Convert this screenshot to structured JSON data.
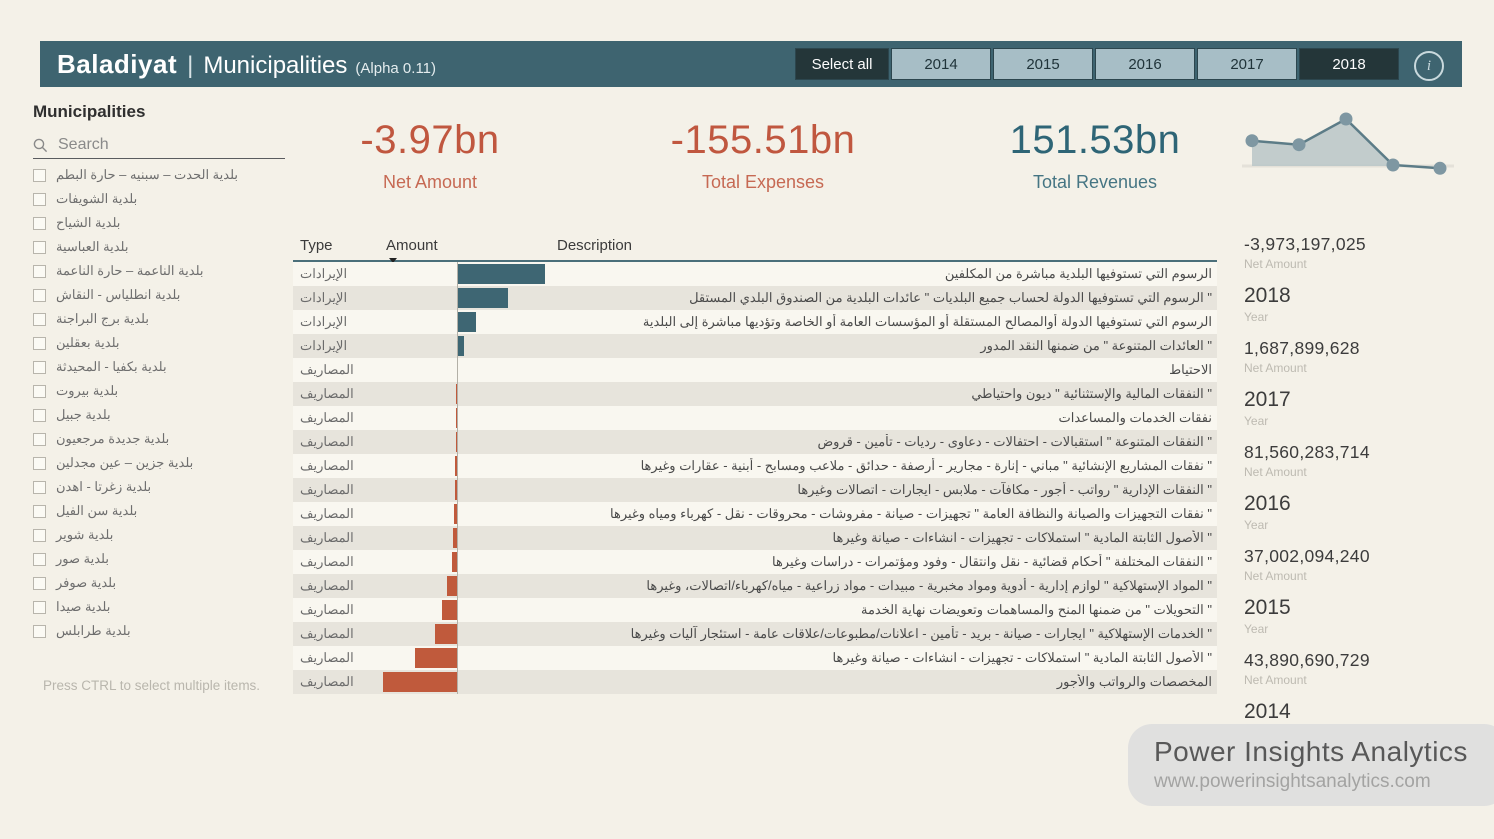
{
  "header": {
    "app_title": "Baladiyat",
    "separator": "|",
    "subtitle": "Municipalities",
    "version": "(Alpha 0.11)",
    "select_all_label": "Select all",
    "years": [
      {
        "label": "2014",
        "selected": false
      },
      {
        "label": "2015",
        "selected": false
      },
      {
        "label": "2016",
        "selected": false
      },
      {
        "label": "2017",
        "selected": false
      },
      {
        "label": "2018",
        "selected": true
      }
    ],
    "info_icon_glyph": "i"
  },
  "sidebar": {
    "title": "Municipalities",
    "search_placeholder": "Search",
    "items": [
      "بلدية الحدت – سبنيه – حارة البطم",
      "بلدية الشويفات",
      "بلدية الشياح",
      "بلدية العباسية",
      "بلدية الناعمة – حارة الناعمة",
      "بلدية انطلياس - النقاش",
      "بلدية برج البراجنة",
      "بلدية بعقلين",
      "بلدية بكفيا - المحيدثة",
      "بلدية بيروت",
      "بلدية جبيل",
      "بلدية جديدة مرجعيون",
      "بلدية جزين – عين مجدلين",
      "بلدية زغرتا - اهدن",
      "بلدية سن الفيل",
      "بلدية شوير",
      "بلدية صور",
      "بلدية صوفر",
      "بلدية صيدا",
      "بلدية طرابلس"
    ],
    "footer_note": "Press CTRL to select multiple items."
  },
  "kpis": [
    {
      "value": "-3.97bn",
      "label": "Net Amount",
      "color": "#c0573f"
    },
    {
      "value": "-155.51bn",
      "label": "Total Expenses",
      "color": "#c0573f"
    },
    {
      "value": "151.53bn",
      "label": "Total Revenues",
      "color": "#2e6576"
    }
  ],
  "table": {
    "columns": [
      "Type",
      "Amount",
      "Description"
    ],
    "sort_column": "Amount",
    "sort_direction": "descending",
    "rows": [
      {
        "type": "الإيرادات",
        "bar": 88,
        "description": "الرسوم التي تستوفيها البلدية مباشرة من المكلفين"
      },
      {
        "type": "الإيرادات",
        "bar": 51,
        "description": "\" الرسوم التي تستوفيها الدولة لحساب جميع البلديات \" عائدات البلدية من الصندوق البلدي المستقل"
      },
      {
        "type": "الإيرادات",
        "bar": 19,
        "description": "الرسوم التي تستوفيها الدولة أوالمصالح المستقلة أو المؤسسات العامة أو الخاصة وتؤديها مباشرة إلى البلدية"
      },
      {
        "type": "الإيرادات",
        "bar": 7,
        "description": "\" العائدات المتنوعة \" من ضمنها النقد المدور"
      },
      {
        "type": "المصاريف",
        "bar": -0.5,
        "description": "الاحتياط"
      },
      {
        "type": "المصاريف",
        "bar": -0.8,
        "description": "\" النفقات المالية والإستثنائية \" ديون واحتياطي"
      },
      {
        "type": "المصاريف",
        "bar": -1,
        "description": "نفقات الخدمات والمساعدات"
      },
      {
        "type": "المصاريف",
        "bar": -1.5,
        "description": "\" النفقات المتنوعة \" استقبالات - احتفالات - دعاوى - رديات - تأمين - قروض"
      },
      {
        "type": "المصاريف",
        "bar": -2,
        "description": "\" نفقات المشاريع الإنشائية \" مباني - إنارة - مجارير - أرصفة - حدائق - ملاعب ومسابح - أبنية - عقارات وغيرها"
      },
      {
        "type": "المصاريف",
        "bar": -2.5,
        "description": "\" النفقات الإدارية \" رواتب - أجور - مكافآت - ملابس - ايجارات - اتصالات وغيرها"
      },
      {
        "type": "المصاريف",
        "bar": -3,
        "description": "\" نفقات التجهيزات والصيانة والنظافة العامة \" تجهيزات - صيانة - مفروشات - محروقات - نقل - كهرباء ومياه وغيرها"
      },
      {
        "type": "المصاريف",
        "bar": -4,
        "description": "\" الأصول الثابتة المادية \" استملاكات - تجهيزات - انشاءات - صيانة وغيرها"
      },
      {
        "type": "المصاريف",
        "bar": -5,
        "description": "\" النفقات المختلفة \" أحكام قضائية - نقل وانتقال - وفود ومؤتمرات - دراسات وغيرها"
      },
      {
        "type": "المصاريف",
        "bar": -10,
        "description": "\" المواد الإستهلاكية \" لوازم إدارية - أدوية ومواد مخبرية - مبيدات - مواد زراعية - مياه/كهرباء/اتصالات، وغيرها"
      },
      {
        "type": "المصاريف",
        "bar": -15,
        "description": "\" التحويلات \" من ضمنها المنح والمساهمات وتعويضات نهاية الخدمة"
      },
      {
        "type": "المصاريف",
        "bar": -22,
        "description": "\" الخدمات الإستهلاكية \" ايجارات - صيانة - بريد - تأمين - اعلانات/مطبوعات/علاقات عامة - استئجار آليات وغيرها"
      },
      {
        "type": "المصاريف",
        "bar": -42,
        "description": "\" الأصول الثابتة المادية \" استملاكات - تجهيزات - انشاءات - صيانة وغيرها"
      },
      {
        "type": "المصاريف",
        "bar": -74,
        "description": "المخصصات والرواتب والأجور"
      }
    ]
  },
  "year_panel": {
    "entries": [
      {
        "value": "-3,973,197,025",
        "value_label": "Net Amount",
        "year": "2018",
        "year_label": "Year"
      },
      {
        "value": "1,687,899,628",
        "value_label": "Net Amount",
        "year": "2017",
        "year_label": "Year"
      },
      {
        "value": "81,560,283,714",
        "value_label": "Net Amount",
        "year": "2016",
        "year_label": "Year"
      },
      {
        "value": "37,002,094,240",
        "value_label": "Net Amount",
        "year": "2015",
        "year_label": "Year"
      },
      {
        "value": "43,890,690,729",
        "value_label": "Net Amount",
        "year": "2014",
        "year_label": "Year"
      }
    ]
  },
  "watermark": {
    "title": "Power Insights Analytics",
    "url": "www.powerinsightsanalytics.com"
  },
  "chart_data": {
    "type": "area",
    "title": "Net Amount by Year sparkline",
    "x": [
      2014,
      2015,
      2016,
      2017,
      2018
    ],
    "series": [
      {
        "name": "Net Amount",
        "values": [
          43890690729,
          37002094240,
          81560283714,
          1687899628,
          -3973197025
        ]
      }
    ],
    "legend": false,
    "grid": false,
    "baseline": 0
  },
  "colors": {
    "header_bar": "#3e6470",
    "page_background": "#f4f1e8",
    "negative": "#c0573f",
    "positive": "#2e6576",
    "bar_revenue": "#3e6673",
    "bar_expense": "#c05a3c",
    "row_stripe": "#e7e4dc",
    "year_button": "#a7bec6",
    "year_button_selected": "#243639"
  }
}
